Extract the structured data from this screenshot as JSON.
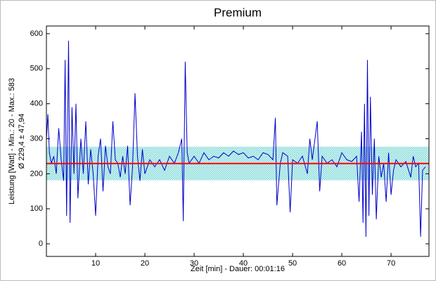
{
  "chart_data": {
    "type": "line",
    "title": "Premium",
    "x_label": "Zeit [min] - Dauer: 00:01:16",
    "y_label": [
      "Leistung [Watt] - Min.: 20 - Max.: 583",
      "Ø 229,4 ± 47,94"
    ],
    "mean": 229.4,
    "std": 47.94,
    "mean_color": "#ff0000",
    "band_color": "#7fd8d8",
    "xlim": [
      0,
      77.7
    ],
    "ylim": [
      -36,
      622
    ],
    "xticks": [
      10,
      20,
      30,
      40,
      50,
      60,
      70
    ],
    "yticks": [
      0,
      100,
      200,
      300,
      400,
      500,
      600
    ],
    "series": [
      {
        "name": "Leistung",
        "color": "#0000cc",
        "x": [
          0,
          0.3,
          0.6,
          1,
          1.5,
          2,
          2.5,
          3,
          3.5,
          3.8,
          4.1,
          4.5,
          4.8,
          5.2,
          5.6,
          6,
          6.4,
          7,
          7.5,
          8,
          8.5,
          9,
          9.5,
          10,
          10.5,
          11,
          11.5,
          12,
          12.5,
          13,
          13.5,
          14,
          14.5,
          15,
          15.5,
          16,
          16.5,
          17,
          17.5,
          18,
          18.5,
          19,
          19.5,
          20,
          21,
          22,
          23,
          24,
          25,
          26,
          26.8,
          27.5,
          27.8,
          28.2,
          28.6,
          29,
          30,
          31,
          32,
          33,
          34,
          35,
          36,
          37,
          38,
          39,
          40,
          41,
          42,
          43,
          44,
          45,
          46,
          46.5,
          46.8,
          47.5,
          48,
          49,
          49.5,
          50,
          51,
          52,
          53,
          53.5,
          54,
          55,
          55.5,
          56,
          57,
          58,
          59,
          60,
          61,
          62,
          63,
          63.5,
          64,
          64.3,
          64.6,
          64.9,
          65.2,
          65.5,
          65.8,
          66.2,
          66.6,
          67,
          67.5,
          68,
          68.5,
          69,
          69.5,
          70,
          70.5,
          71,
          72,
          73,
          74,
          74.5,
          75,
          75.6,
          76,
          76.4,
          77
        ],
        "values": [
          300,
          370,
          260,
          230,
          250,
          200,
          330,
          240,
          180,
          525,
          80,
          580,
          60,
          390,
          200,
          400,
          130,
          300,
          200,
          350,
          170,
          270,
          200,
          80,
          250,
          300,
          150,
          280,
          220,
          200,
          350,
          240,
          230,
          190,
          250,
          200,
          280,
          110,
          220,
          430,
          250,
          180,
          270,
          200,
          240,
          220,
          240,
          210,
          250,
          230,
          260,
          300,
          65,
          520,
          260,
          230,
          250,
          230,
          260,
          240,
          250,
          245,
          260,
          250,
          265,
          255,
          260,
          245,
          250,
          240,
          260,
          255,
          240,
          360,
          110,
          230,
          260,
          250,
          90,
          240,
          230,
          250,
          200,
          300,
          240,
          350,
          150,
          250,
          230,
          240,
          220,
          260,
          240,
          235,
          250,
          120,
          320,
          60,
          400,
          20,
          525,
          80,
          420,
          140,
          300,
          70,
          250,
          190,
          230,
          120,
          260,
          140,
          210,
          240,
          220,
          235,
          190,
          250,
          220,
          230,
          20,
          210,
          220
        ]
      }
    ]
  }
}
